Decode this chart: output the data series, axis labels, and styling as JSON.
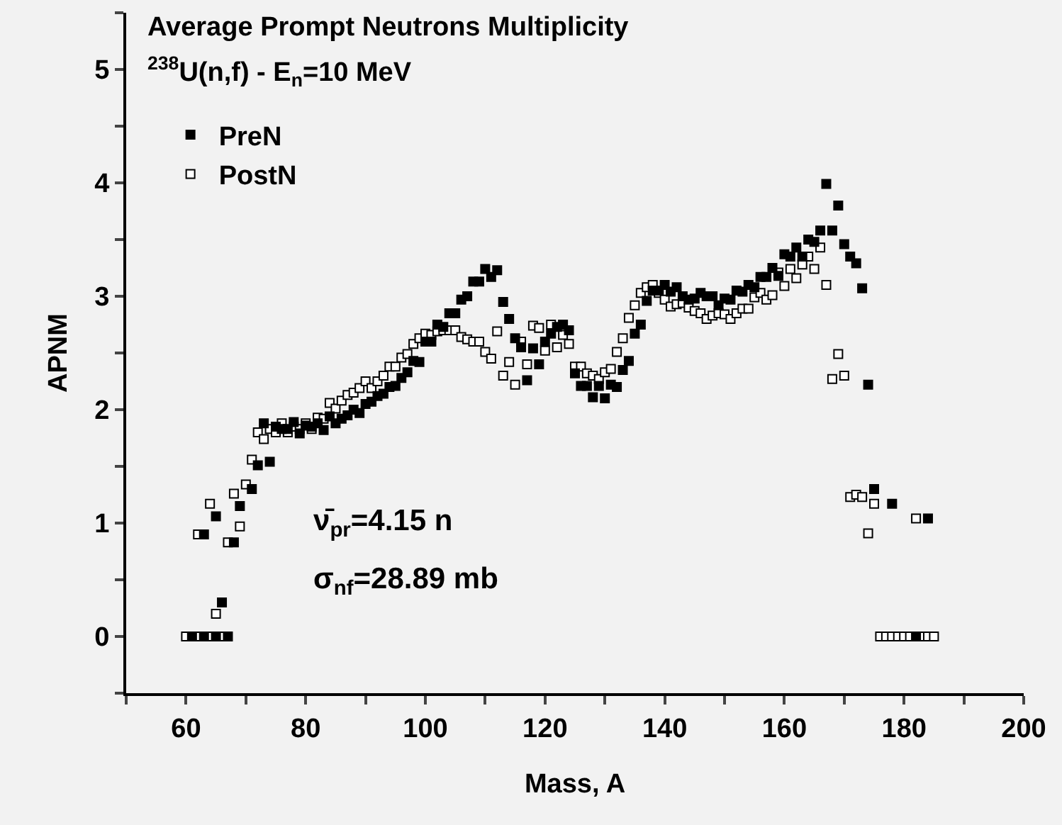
{
  "chart_data": {
    "type": "scatter",
    "title": "Average Prompt Neutrons Multiplicity",
    "subtitle": "$^{238}$U(n,f) - E$_{n}$=10 MeV",
    "xlabel": "Mass, A",
    "ylabel": "APNM",
    "annotations": [
      "ν̄$_{pr}$=4.15 n",
      "σ$_{nf}$=28.89 mb"
    ],
    "xlim": [
      50,
      200
    ],
    "xticks": [
      {
        "value": 50,
        "label": null
      },
      60,
      {
        "value": 70,
        "label": null
      },
      80,
      {
        "value": 90,
        "label": null
      },
      100,
      {
        "value": 110,
        "label": null
      },
      120,
      {
        "value": 130,
        "label": null
      },
      140,
      {
        "value": 150,
        "label": null
      },
      160,
      {
        "value": 170,
        "label": null
      },
      180,
      {
        "value": 190,
        "label": null
      },
      200
    ],
    "ylim": [
      -0.5,
      5.5
    ],
    "yticks": [
      {
        "value": -0.5,
        "label": null
      },
      0,
      {
        "value": 0.5,
        "label": null
      },
      1,
      {
        "value": 1.5,
        "label": null
      },
      2,
      {
        "value": 2.5,
        "label": null
      },
      3,
      {
        "value": 3.5,
        "label": null
      },
      4,
      {
        "value": 4.5,
        "label": null
      },
      5,
      {
        "value": 5.5,
        "label": null
      }
    ],
    "grid": false,
    "legend": "top left",
    "marker": "square",
    "series": [
      {
        "name": "PreN",
        "color": "#000000",
        "x": [
          61,
          63,
          65,
          67,
          66,
          63,
          65,
          68,
          69,
          71,
          72,
          73,
          74,
          75,
          76,
          77,
          78,
          79,
          80,
          81,
          82,
          83,
          84,
          85,
          86,
          87,
          88,
          89,
          90,
          91,
          92,
          93,
          94,
          95,
          96,
          97,
          98,
          99,
          100,
          101,
          102,
          103,
          104,
          105,
          106,
          107,
          108,
          109,
          110,
          111,
          112,
          113,
          114,
          115,
          116,
          117,
          118,
          119,
          120,
          121,
          122,
          123,
          124,
          125,
          126,
          127,
          128,
          129,
          130,
          131,
          132,
          133,
          134,
          135,
          136,
          137,
          138,
          139,
          140,
          141,
          142,
          143,
          144,
          145,
          146,
          147,
          148,
          149,
          150,
          151,
          152,
          153,
          154,
          155,
          156,
          157,
          158,
          159,
          160,
          161,
          162,
          163,
          164,
          165,
          166,
          167,
          168,
          169,
          170,
          171,
          172,
          173,
          174,
          175,
          178,
          184,
          182
        ],
        "values": [
          0,
          0,
          0,
          0,
          0.3,
          0.9,
          1.06,
          0.83,
          1.15,
          1.3,
          1.51,
          1.88,
          1.54,
          1.85,
          1.83,
          1.83,
          1.89,
          1.79,
          1.86,
          1.85,
          1.88,
          1.82,
          1.94,
          1.88,
          1.92,
          1.95,
          2.0,
          1.97,
          2.05,
          2.07,
          2.12,
          2.14,
          2.2,
          2.21,
          2.28,
          2.33,
          2.43,
          2.42,
          2.6,
          2.6,
          2.75,
          2.73,
          2.85,
          2.85,
          2.97,
          3.0,
          3.13,
          3.13,
          3.24,
          3.17,
          3.23,
          2.95,
          2.8,
          2.63,
          2.55,
          2.26,
          2.54,
          2.4,
          2.6,
          2.67,
          2.73,
          2.75,
          2.7,
          2.32,
          2.21,
          2.21,
          2.11,
          2.21,
          2.1,
          2.22,
          2.2,
          2.35,
          2.43,
          2.67,
          2.75,
          2.96,
          3.05,
          3.05,
          3.1,
          3.04,
          3.08,
          3.0,
          2.97,
          2.98,
          3.03,
          3.0,
          3.0,
          2.92,
          2.98,
          2.97,
          3.05,
          3.04,
          3.1,
          3.08,
          3.17,
          3.17,
          3.25,
          3.18,
          3.37,
          3.35,
          3.43,
          3.35,
          3.5,
          3.48,
          3.58,
          3.99,
          3.58,
          3.8,
          3.46,
          3.35,
          3.29,
          3.07,
          2.22,
          1.3,
          1.17,
          1.04,
          0
        ]
      },
      {
        "name": "PostN",
        "color": "#ffffff",
        "x": [
          60,
          62,
          64,
          66,
          65,
          62,
          64,
          67,
          68,
          69,
          70,
          71,
          72,
          73,
          74,
          75,
          76,
          77,
          78,
          79,
          80,
          81,
          82,
          83,
          84,
          85,
          86,
          87,
          88,
          89,
          90,
          91,
          92,
          93,
          94,
          95,
          96,
          97,
          98,
          99,
          100,
          101,
          102,
          103,
          104,
          105,
          106,
          107,
          108,
          109,
          110,
          111,
          112,
          113,
          114,
          115,
          116,
          117,
          118,
          119,
          120,
          121,
          122,
          123,
          124,
          125,
          126,
          127,
          128,
          129,
          130,
          131,
          132,
          133,
          134,
          135,
          136,
          137,
          138,
          139,
          140,
          141,
          142,
          143,
          144,
          145,
          146,
          147,
          148,
          149,
          150,
          151,
          152,
          153,
          154,
          155,
          156,
          157,
          158,
          159,
          160,
          161,
          162,
          163,
          164,
          165,
          166,
          167,
          168,
          169,
          170,
          171,
          172,
          173,
          174,
          175,
          182,
          176,
          177,
          178,
          179,
          180,
          181,
          183,
          184,
          185
        ],
        "values": [
          0,
          0,
          0,
          0,
          0.2,
          0.9,
          1.17,
          0.83,
          1.26,
          0.97,
          1.34,
          1.56,
          1.8,
          1.74,
          1.83,
          1.8,
          1.88,
          1.8,
          1.85,
          1.83,
          1.88,
          1.83,
          1.93,
          1.92,
          2.06,
          2.01,
          2.08,
          2.13,
          2.15,
          2.19,
          2.25,
          2.19,
          2.25,
          2.3,
          2.38,
          2.38,
          2.46,
          2.49,
          2.58,
          2.63,
          2.67,
          2.66,
          2.69,
          2.7,
          2.7,
          2.7,
          2.64,
          2.62,
          2.6,
          2.6,
          2.51,
          2.45,
          2.69,
          2.3,
          2.42,
          2.22,
          2.6,
          2.4,
          2.74,
          2.72,
          2.52,
          2.75,
          2.55,
          2.66,
          2.58,
          2.38,
          2.38,
          2.32,
          2.3,
          2.27,
          2.33,
          2.36,
          2.51,
          2.63,
          2.81,
          2.92,
          3.03,
          3.08,
          3.1,
          3.03,
          2.97,
          2.91,
          2.93,
          2.94,
          2.9,
          2.87,
          2.85,
          2.8,
          2.83,
          2.85,
          2.84,
          2.8,
          2.85,
          2.89,
          2.89,
          2.99,
          3.03,
          2.97,
          3.01,
          3.21,
          3.09,
          3.24,
          3.16,
          3.28,
          3.35,
          3.24,
          3.43,
          3.1,
          2.27,
          2.49,
          2.3,
          1.23,
          1.25,
          1.23,
          0.91,
          1.17,
          1.04,
          0,
          0,
          0,
          0,
          0,
          0,
          0,
          0,
          0
        ]
      }
    ]
  }
}
